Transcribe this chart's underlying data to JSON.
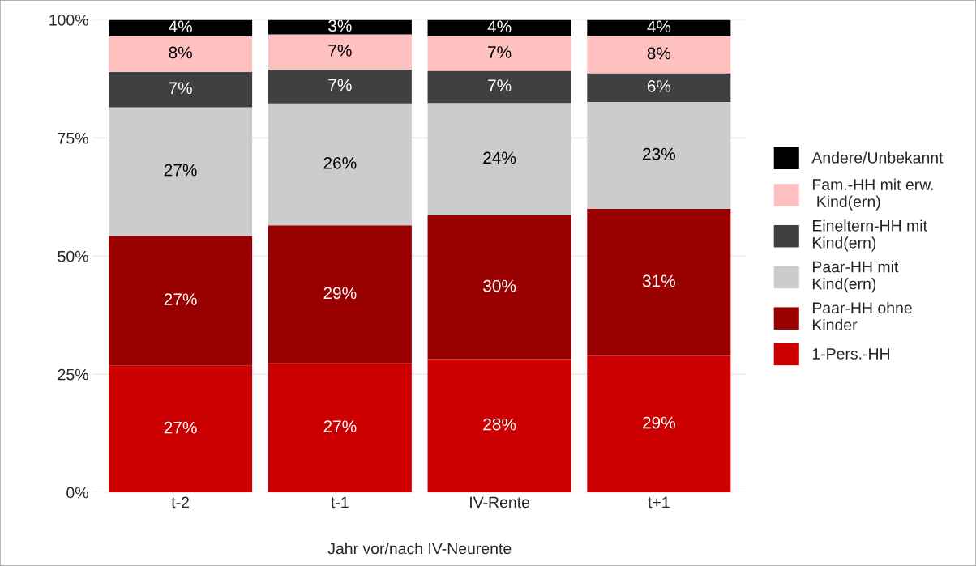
{
  "chart_data": {
    "type": "bar",
    "stacked": true,
    "xlabel": "Jahr vor/nach IV-Neurente",
    "categories": [
      "t-2",
      "t-1",
      "IV-Rente",
      "t+1"
    ],
    "ylim": [
      0,
      100
    ],
    "yticks": [
      {
        "value": 0,
        "label": "0%"
      },
      {
        "value": 25,
        "label": "25%"
      },
      {
        "value": 50,
        "label": "50%"
      },
      {
        "value": 75,
        "label": "75%"
      },
      {
        "value": 100,
        "label": "100%"
      }
    ],
    "grid": "y",
    "legend": "right",
    "series": [
      {
        "name": "1-Pers.-HH",
        "color": "#cc0000",
        "values": [
          26.8,
          27.3,
          28.2,
          28.9
        ],
        "value_labels": [
          "27%",
          "27%",
          "28%",
          "29%"
        ]
      },
      {
        "name": "Paar-HH ohne\nKinder",
        "color": "#990000",
        "values": [
          27.5,
          29.2,
          30.4,
          31.1
        ],
        "value_labels": [
          "27%",
          "29%",
          "30%",
          "31%"
        ]
      },
      {
        "name": "Paar-HH mit\nKind(ern)",
        "color": "#cccccc",
        "values": [
          27.2,
          25.8,
          23.8,
          22.6
        ],
        "value_labels": [
          "27%",
          "26%",
          "24%",
          "23%"
        ]
      },
      {
        "name": "Eineltern-HH mit\nKind(ern)",
        "color": "#404040",
        "values": [
          7.5,
          7.2,
          6.8,
          6.1
        ],
        "value_labels": [
          "7%",
          "7%",
          "7%",
          "6%"
        ]
      },
      {
        "name": "Fam.-HH mit erw.\n Kind(ern)",
        "color": "#ffc0c0",
        "values": [
          7.5,
          7.4,
          7.3,
          7.8
        ],
        "value_labels": [
          "8%",
          "7%",
          "7%",
          "8%"
        ]
      },
      {
        "name": "Andere/Unbekannt",
        "color": "#000000",
        "values": [
          3.5,
          3.1,
          3.5,
          3.5
        ],
        "value_labels": [
          "4%",
          "3%",
          "4%",
          "4%"
        ]
      }
    ]
  }
}
